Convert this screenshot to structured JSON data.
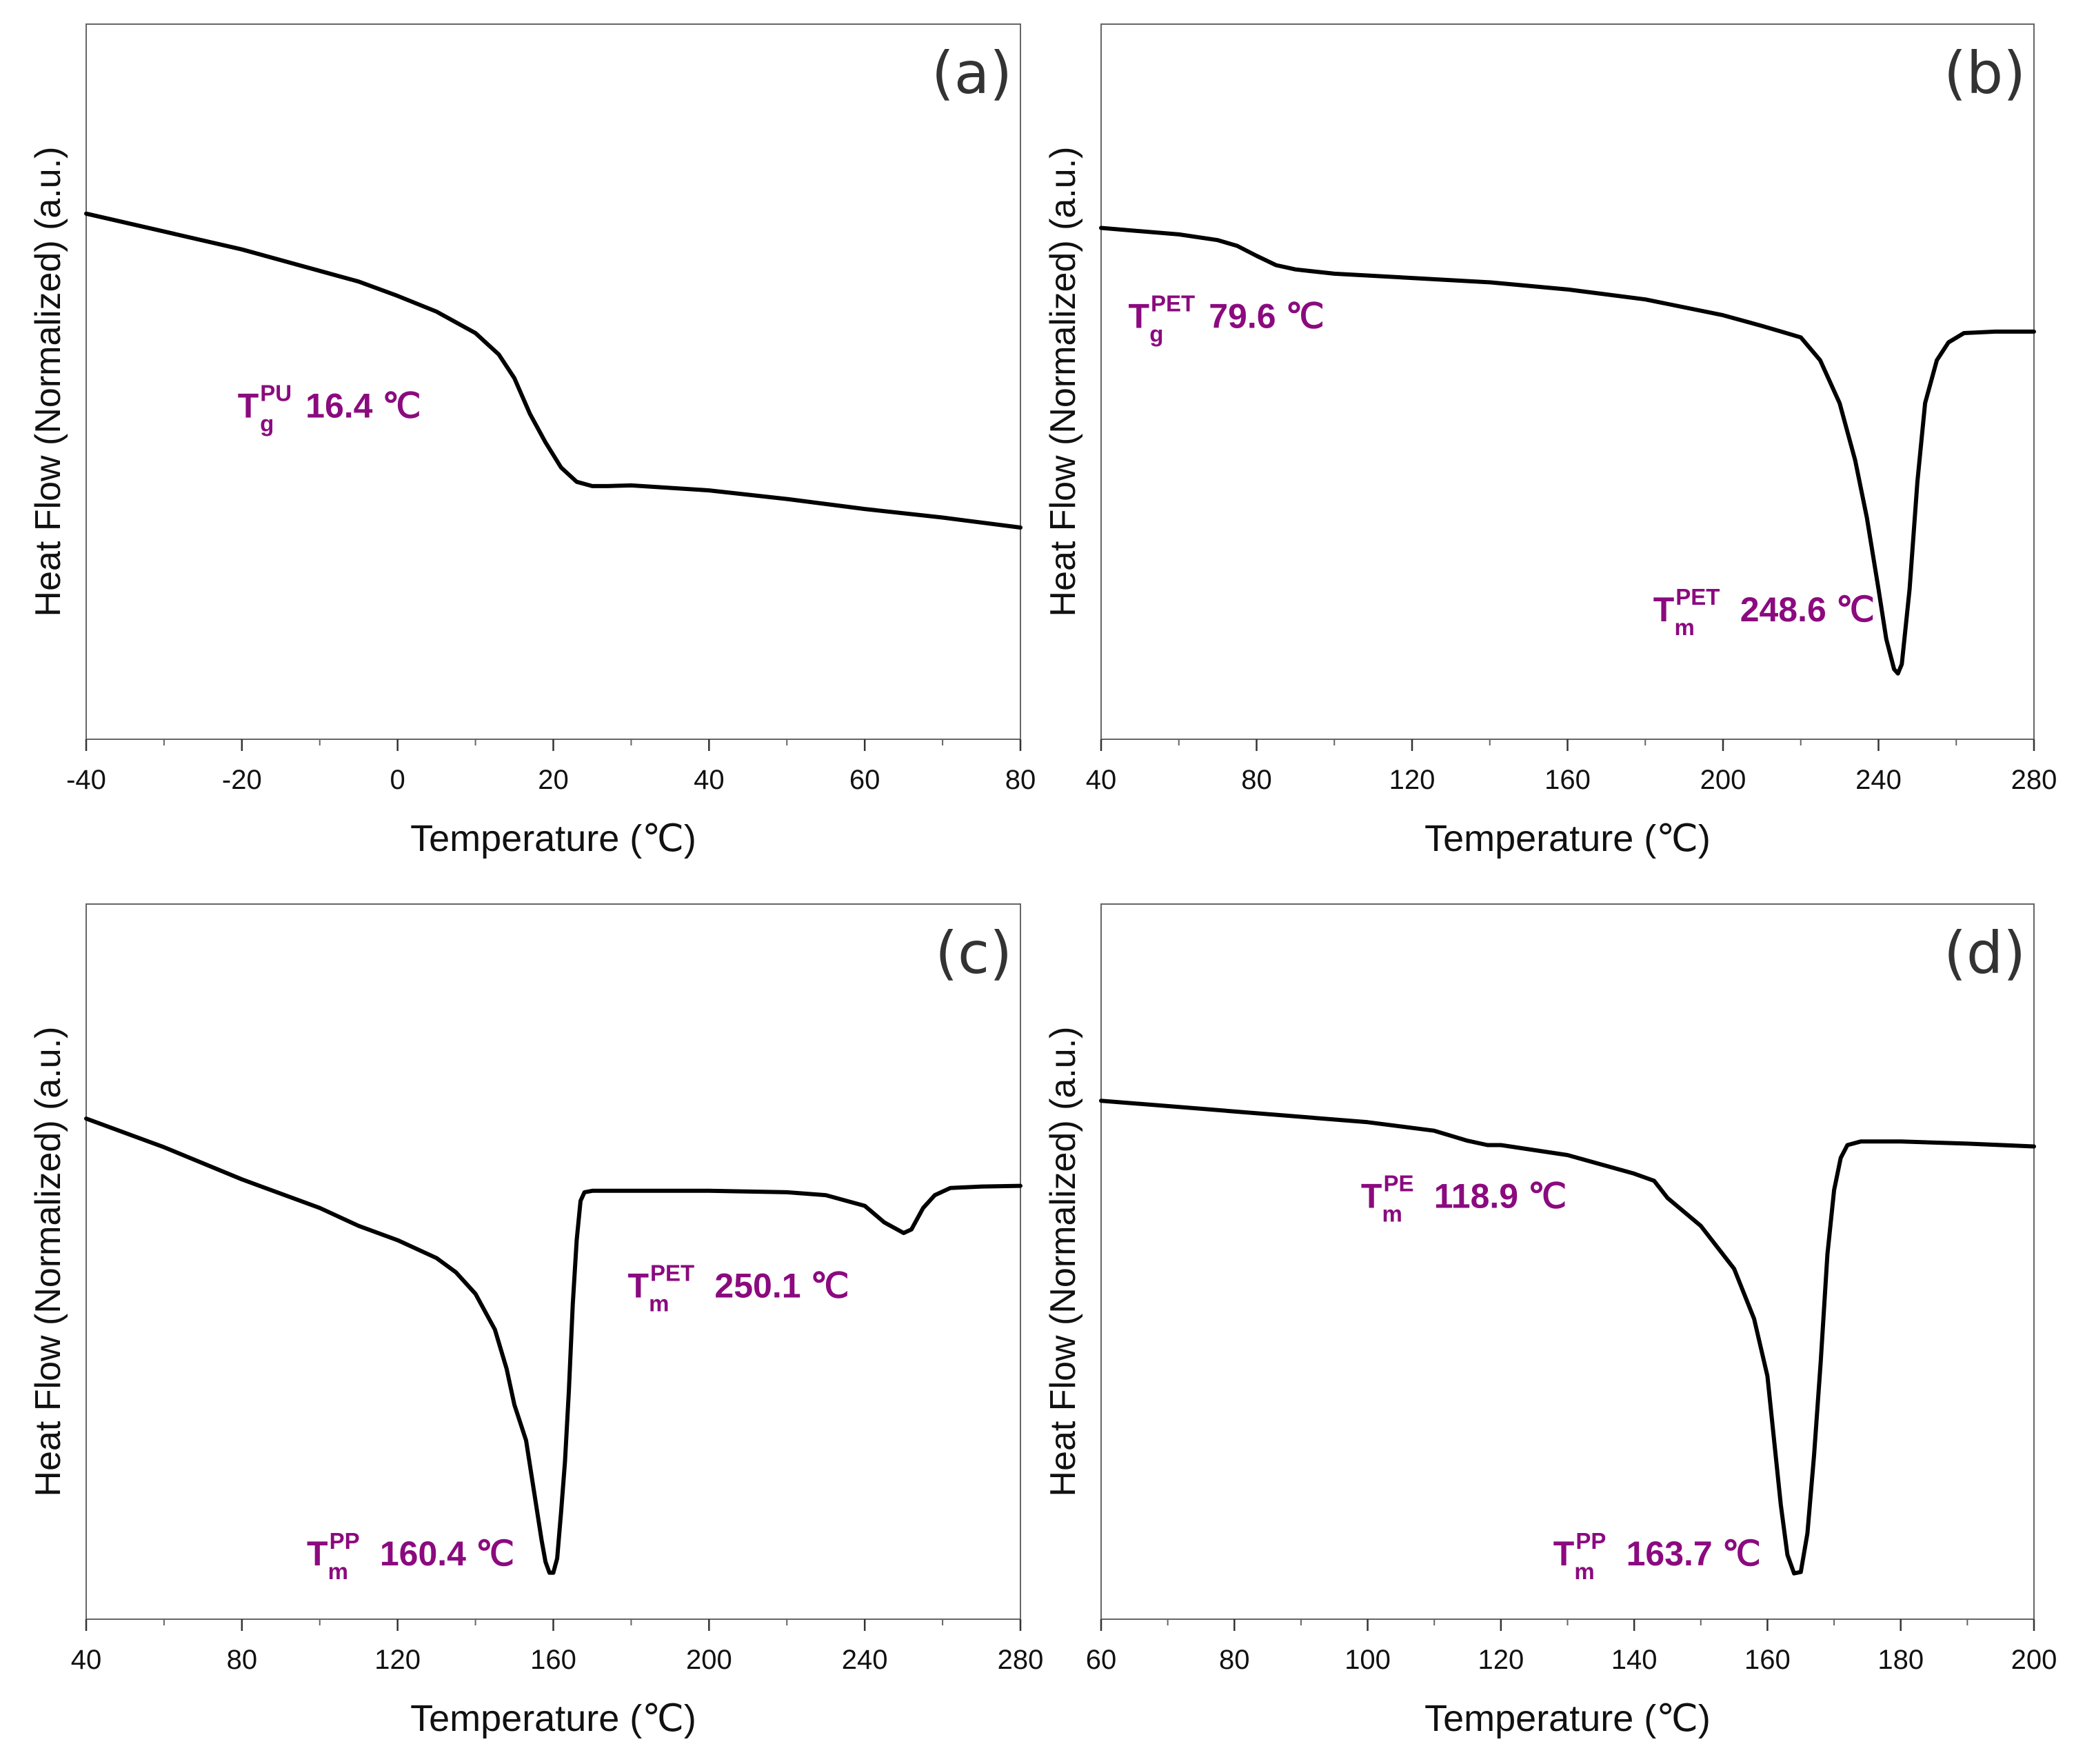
{
  "figure": {
    "annotation_color": "#8b0a7f",
    "line_color": "#000000",
    "frame_color": "#666666"
  },
  "chart_data": [
    {
      "type": "line",
      "panel_label": "(a)",
      "xlabel": "Temperature (℃)",
      "ylabel": "Heat Flow (Normalized) (a.u.)",
      "xlim": [
        -40,
        80
      ],
      "ylim": [
        0,
        100
      ],
      "xticks": [
        -40,
        -20,
        0,
        20,
        40,
        60,
        80
      ],
      "xtick_labels": [
        "-40",
        "-20",
        "0",
        "20",
        "40",
        "60",
        "80"
      ],
      "minor_step": 10,
      "series": [
        {
          "name": "PU",
          "x": [
            -40,
            -30,
            -20,
            -10,
            -5,
            0,
            5,
            10,
            13,
            15,
            17,
            19,
            21,
            23,
            25,
            27,
            30,
            40,
            50,
            60,
            70,
            80
          ],
          "y": [
            73.5,
            71,
            68.5,
            65.5,
            64,
            62,
            59.8,
            56.8,
            53.8,
            50.5,
            45.5,
            41.5,
            38,
            36,
            35.4,
            35.4,
            35.5,
            34.8,
            33.6,
            32.2,
            31,
            29.6
          ]
        }
      ],
      "annotations": [
        {
          "symbol": "T",
          "sub": "g",
          "sup": "PU",
          "value": "16.4 ℃",
          "x": 3,
          "y": 45,
          "anchor": "end"
        }
      ]
    },
    {
      "type": "line",
      "panel_label": "(b)",
      "xlabel": "Temperature (℃)",
      "ylabel": "Heat Flow (Normalized) (a.u.)",
      "xlim": [
        40,
        280
      ],
      "ylim": [
        0,
        100
      ],
      "xticks": [
        40,
        80,
        120,
        160,
        200,
        240,
        280
      ],
      "xtick_labels": [
        "40",
        "80",
        "120",
        "160",
        "200",
        "240",
        "280"
      ],
      "minor_step": 20,
      "series": [
        {
          "name": "PET",
          "x": [
            40,
            60,
            70,
            75,
            80,
            85,
            90,
            100,
            120,
            140,
            160,
            180,
            200,
            210,
            215,
            220,
            225,
            230,
            234,
            237,
            240,
            242,
            244,
            245,
            246,
            248,
            250,
            252,
            255,
            258,
            262,
            270,
            280
          ],
          "y": [
            71.5,
            70.6,
            69.8,
            69,
            67.6,
            66.3,
            65.7,
            65.1,
            64.5,
            63.9,
            62.9,
            61.5,
            59.3,
            57.8,
            57,
            56.2,
            53,
            47,
            39,
            31,
            21,
            14,
            9.8,
            9.2,
            10.5,
            21,
            36,
            47,
            53,
            55.5,
            56.8,
            57,
            57
          ]
        }
      ],
      "annotations": [
        {
          "symbol": "T",
          "sub": "g",
          "sup": "PET",
          "value": "79.6 ℃",
          "x": 47,
          "y": 57.5,
          "anchor": "start"
        },
        {
          "symbol": "T",
          "sub": "m",
          "sup": "PET",
          "value": "248.6 ℃",
          "x": 239,
          "y": 16.5,
          "anchor": "end"
        }
      ]
    },
    {
      "type": "line",
      "panel_label": "(c)",
      "xlabel": "Temperature (℃)",
      "ylabel": "Heat Flow (Normalized) (a.u.)",
      "xlim": [
        40,
        280
      ],
      "ylim": [
        0,
        100
      ],
      "xticks": [
        40,
        80,
        120,
        160,
        200,
        240,
        280
      ],
      "xtick_labels": [
        "40",
        "80",
        "120",
        "160",
        "200",
        "240",
        "280"
      ],
      "minor_step": 20,
      "series": [
        {
          "name": "PP/PET",
          "x": [
            40,
            60,
            80,
            100,
            110,
            120,
            130,
            135,
            140,
            145,
            148,
            150,
            153,
            155,
            157,
            158,
            159,
            160,
            161,
            162,
            163,
            164,
            165,
            166,
            167,
            168,
            170,
            180,
            200,
            220,
            230,
            240,
            245,
            250,
            252,
            255,
            258,
            262,
            270,
            280
          ],
          "y": [
            70,
            66,
            61.5,
            57.5,
            55,
            53,
            50.5,
            48.5,
            45.5,
            40.5,
            35,
            30,
            25,
            18,
            11,
            8,
            6.5,
            6.5,
            8.5,
            15,
            22,
            32,
            44,
            53,
            58.5,
            59.7,
            59.9,
            59.9,
            59.9,
            59.7,
            59.3,
            57.8,
            55.5,
            54,
            54.5,
            57.5,
            59.3,
            60.3,
            60.5,
            60.6
          ]
        }
      ],
      "annotations": [
        {
          "symbol": "T",
          "sub": "m",
          "sup": "PP",
          "value": "160.4 ℃",
          "x": 150,
          "y": 7.5,
          "anchor": "end"
        },
        {
          "symbol": "T",
          "sub": "m",
          "sup": "PET",
          "value": "250.1 ℃",
          "x": 236,
          "y": 45,
          "anchor": "end"
        }
      ]
    },
    {
      "type": "line",
      "panel_label": "(d)",
      "xlabel": "Temperature (℃)",
      "ylabel": "Heat Flow (Normalized) (a.u.)",
      "xlim": [
        60,
        200
      ],
      "ylim": [
        0,
        100
      ],
      "xticks": [
        60,
        80,
        100,
        120,
        140,
        160,
        180,
        200
      ],
      "xtick_labels": [
        "60",
        "80",
        "100",
        "120",
        "140",
        "160",
        "180",
        "200"
      ],
      "minor_step": 10,
      "series": [
        {
          "name": "PE/PP",
          "x": [
            60,
            80,
            100,
            110,
            115,
            118,
            120,
            130,
            140,
            143,
            145,
            150,
            155,
            158,
            160,
            161,
            162,
            163,
            164,
            165,
            166,
            167,
            168,
            169,
            170,
            171,
            172,
            174,
            180,
            190,
            200
          ],
          "y": [
            72.5,
            71,
            69.5,
            68.3,
            66.9,
            66.3,
            66.3,
            64.9,
            62.3,
            61.3,
            58.9,
            55,
            49,
            42,
            34,
            25,
            16,
            9,
            6.4,
            6.6,
            12,
            23,
            36,
            51,
            60,
            64.5,
            66.3,
            66.8,
            66.8,
            66.5,
            66.1
          ]
        }
      ],
      "annotations": [
        {
          "symbol": "T",
          "sub": "m",
          "sup": "PE",
          "value": "118.9 ℃",
          "x": 99,
          "y": 57.5,
          "anchor": "start"
        },
        {
          "symbol": "T",
          "sub": "m",
          "sup": "PP",
          "value": "163.7 ℃",
          "x": 159,
          "y": 7.5,
          "anchor": "end"
        }
      ]
    }
  ]
}
